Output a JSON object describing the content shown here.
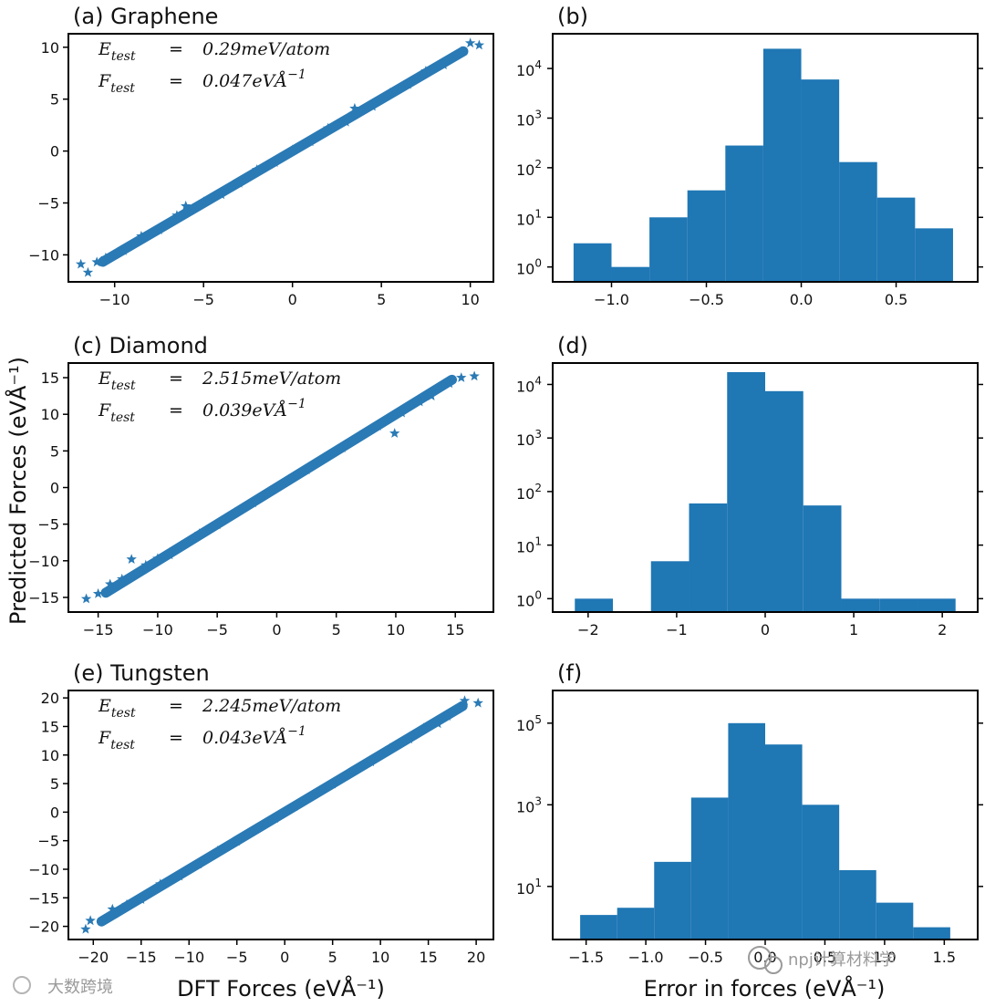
{
  "figure": {
    "shared_ylabel_left": "Predicted Forces (eVÅ⁻¹)",
    "xlabel_left": "DFT Forces (eVÅ⁻¹)",
    "xlabel_right": "Error in forces (eVÅ⁻¹)",
    "colors": {
      "marker": "#2a7ab5",
      "bar": "#1f77b4",
      "axis": "#000000"
    },
    "watermark_right": "npj计算材料学",
    "watermark_left": "大数跨境"
  },
  "chart_data": [
    {
      "id": "a",
      "type": "scatter",
      "title": "(a) Graphene",
      "xlim": [
        -12.6,
        11.3
      ],
      "ylim": [
        -12.6,
        11.3
      ],
      "xticks": [
        -10,
        -5,
        0,
        5,
        10
      ],
      "yticks": [
        -10,
        -5,
        0,
        5,
        10
      ],
      "tick_labels_x": [
        "−10",
        "−5",
        "0",
        "5",
        "10"
      ],
      "tick_labels_y": [
        "−10",
        "−5",
        "0",
        "5",
        "10"
      ],
      "annotation": {
        "e_sym": "E",
        "e_sub": "test",
        "eq": "=",
        "e_val": "0.29meV/atom",
        "f_sym": "F",
        "f_sub": "test",
        "f_val": "0.047eVÅ",
        "f_exp": "−1"
      },
      "points": [
        [
          -11.9,
          -10.9
        ],
        [
          -11.5,
          -11.7
        ],
        [
          -11.0,
          -10.7
        ],
        [
          -10.5,
          -10.3
        ],
        [
          -9.5,
          -9.6
        ],
        [
          -8.5,
          -8.2
        ],
        [
          -7.5,
          -7.6
        ],
        [
          -6.5,
          -6.2
        ],
        [
          -6.0,
          -5.3
        ],
        [
          -5.0,
          -4.9
        ],
        [
          -4.0,
          -4.2
        ],
        [
          -3.0,
          -3.1
        ],
        [
          -2.0,
          -1.8
        ],
        [
          -1.0,
          -1.1
        ],
        [
          0.0,
          0.1
        ],
        [
          1.0,
          0.9
        ],
        [
          2.0,
          2.2
        ],
        [
          3.0,
          2.8
        ],
        [
          3.5,
          4.1
        ],
        [
          4.5,
          4.3
        ],
        [
          5.5,
          5.6
        ],
        [
          6.5,
          6.4
        ],
        [
          7.5,
          7.7
        ],
        [
          8.5,
          8.3
        ],
        [
          9.5,
          9.6
        ],
        [
          10.0,
          10.4
        ],
        [
          10.5,
          10.2
        ]
      ]
    },
    {
      "id": "b",
      "type": "bar",
      "title": "(b)",
      "yscale": "log",
      "xlim": [
        -1.31,
        0.93
      ],
      "ylim_exponents": [
        -0.3,
        4.7
      ],
      "xticks": [
        -1.0,
        -0.5,
        0.0,
        0.5
      ],
      "tick_labels_x": [
        "−1.0",
        "−0.5",
        "0.0",
        "0.5"
      ],
      "yticks": [
        0,
        1,
        2,
        3,
        4
      ],
      "tick_labels_y": [
        "10",
        "10",
        "10",
        "10",
        "10"
      ],
      "tick_exps_y": [
        "0",
        "1",
        "2",
        "3",
        "4"
      ],
      "bin_edges": [
        -1.2,
        -1.0,
        -0.8,
        -0.6,
        -0.4,
        -0.2,
        0.0,
        0.2,
        0.4,
        0.6,
        0.8
      ],
      "counts": [
        3,
        1,
        10,
        35,
        280,
        25000,
        6000,
        130,
        25,
        6
      ]
    },
    {
      "id": "c",
      "type": "scatter",
      "title": "(c) Diamond",
      "xlim": [
        -17.5,
        18.2
      ],
      "ylim": [
        -17.0,
        17.0
      ],
      "xticks": [
        -15,
        -10,
        -5,
        0,
        5,
        10,
        15
      ],
      "yticks": [
        -15,
        -10,
        -5,
        0,
        5,
        10,
        15
      ],
      "tick_labels_x": [
        "−15",
        "−10",
        "−5",
        "0",
        "5",
        "10",
        "15"
      ],
      "tick_labels_y": [
        "−15",
        "−10",
        "−5",
        "0",
        "5",
        "10",
        "15"
      ],
      "annotation": {
        "e_sym": "E",
        "e_sub": "test",
        "eq": "=",
        "e_val": "2.515meV/atom",
        "f_sym": "F",
        "f_sub": "test",
        "f_val": "0.039eVÅ",
        "f_exp": "−1"
      },
      "points": [
        [
          -16.0,
          -15.2
        ],
        [
          -15.0,
          -14.5
        ],
        [
          -14.0,
          -13.2
        ],
        [
          -13.0,
          -12.5
        ],
        [
          -12.2,
          -9.8
        ],
        [
          -11.0,
          -10.6
        ],
        [
          -10.0,
          -9.7
        ],
        [
          -9.0,
          -9.2
        ],
        [
          -8.0,
          -7.9
        ],
        [
          -6.5,
          -6.3
        ],
        [
          -5.0,
          -5.1
        ],
        [
          -3.5,
          -3.4
        ],
        [
          -2.0,
          -2.1
        ],
        [
          -0.5,
          -0.4
        ],
        [
          1.0,
          1.1
        ],
        [
          2.5,
          2.4
        ],
        [
          4.0,
          4.1
        ],
        [
          5.5,
          5.4
        ],
        [
          7.0,
          7.1
        ],
        [
          8.5,
          8.4
        ],
        [
          9.9,
          7.4
        ],
        [
          10.5,
          10.2
        ],
        [
          12.0,
          11.7
        ],
        [
          13.0,
          12.5
        ],
        [
          14.5,
          14.2
        ],
        [
          15.5,
          15.0
        ],
        [
          16.6,
          15.2
        ]
      ]
    },
    {
      "id": "d",
      "type": "bar",
      "title": "(d)",
      "yscale": "log",
      "xlim": [
        -2.4,
        2.4
      ],
      "ylim_exponents": [
        -0.25,
        4.4
      ],
      "xticks": [
        -2,
        -1,
        0,
        1,
        2
      ],
      "tick_labels_x": [
        "−2",
        "−1",
        "0",
        "1",
        "2"
      ],
      "yticks": [
        0,
        1,
        2,
        3,
        4
      ],
      "tick_labels_y": [
        "10",
        "10",
        "10",
        "10",
        "10"
      ],
      "tick_exps_y": [
        "0",
        "1",
        "2",
        "3",
        "4"
      ],
      "bin_edges": [
        -2.15,
        -1.72,
        -1.29,
        -0.86,
        -0.43,
        0.0,
        0.43,
        0.86,
        1.29,
        1.72,
        2.15
      ],
      "counts": [
        1,
        0,
        5,
        60,
        17000,
        7500,
        55,
        1,
        1,
        1
      ]
    },
    {
      "id": "e",
      "type": "scatter",
      "title": "(e) Tungsten",
      "xlim": [
        -22.6,
        21.8
      ],
      "ylim": [
        -22.3,
        21.3
      ],
      "xticks": [
        -20,
        -15,
        -10,
        -5,
        0,
        5,
        10,
        15,
        20
      ],
      "yticks": [
        -20,
        -15,
        -10,
        -5,
        0,
        5,
        10,
        15,
        20
      ],
      "tick_labels_x": [
        "−20",
        "−15",
        "−10",
        "−5",
        "0",
        "5",
        "10",
        "15",
        "20"
      ],
      "tick_labels_y": [
        "−20",
        "−15",
        "−10",
        "−5",
        "0",
        "5",
        "10",
        "15",
        "20"
      ],
      "annotation": {
        "e_sym": "E",
        "e_sub": "test",
        "eq": "=",
        "e_val": "2.245meV/atom",
        "f_sym": "F",
        "f_sub": "test",
        "f_val": "0.043eVÅ",
        "f_exp": "−1"
      },
      "points": [
        [
          -20.8,
          -20.5
        ],
        [
          -20.3,
          -19.0
        ],
        [
          -18.0,
          -17.0
        ],
        [
          -16.5,
          -16.2
        ],
        [
          -15.0,
          -15.3
        ],
        [
          -13.0,
          -12.6
        ],
        [
          -11.0,
          -11.2
        ],
        [
          -9.0,
          -9.1
        ],
        [
          -7.0,
          -6.8
        ],
        [
          -5.0,
          -5.1
        ],
        [
          -3.0,
          -2.9
        ],
        [
          -1.0,
          -1.1
        ],
        [
          1.0,
          1.0
        ],
        [
          3.0,
          3.1
        ],
        [
          5.0,
          4.9
        ],
        [
          7.0,
          7.1
        ],
        [
          9.0,
          8.8
        ],
        [
          11.0,
          11.2
        ],
        [
          13.0,
          12.8
        ],
        [
          14.5,
          14.7
        ],
        [
          16.0,
          15.5
        ],
        [
          17.0,
          16.8
        ],
        [
          18.8,
          19.5
        ],
        [
          20.2,
          19.1
        ]
      ]
    },
    {
      "id": "f",
      "type": "bar",
      "title": "(f)",
      "yscale": "log",
      "xlim": [
        -1.78,
        1.78
      ],
      "ylim_exponents": [
        -0.3,
        5.8
      ],
      "xticks": [
        -1.5,
        -1.0,
        -0.5,
        0.0,
        0.5,
        1.0,
        1.5
      ],
      "tick_labels_x": [
        "−1.5",
        "−1.0",
        "−0.5",
        "0.0",
        "0.5",
        "1.0",
        "1.5"
      ],
      "yticks": [
        1,
        3,
        5
      ],
      "tick_labels_y": [
        "10",
        "10",
        "10"
      ],
      "tick_exps_y": [
        "1",
        "3",
        "5"
      ],
      "bin_edges": [
        -1.55,
        -1.24,
        -0.93,
        -0.62,
        -0.31,
        0.0,
        0.31,
        0.62,
        0.93,
        1.24,
        1.55
      ],
      "counts": [
        2,
        3,
        40,
        1500,
        100000,
        30000,
        1000,
        25,
        4,
        1
      ]
    }
  ]
}
